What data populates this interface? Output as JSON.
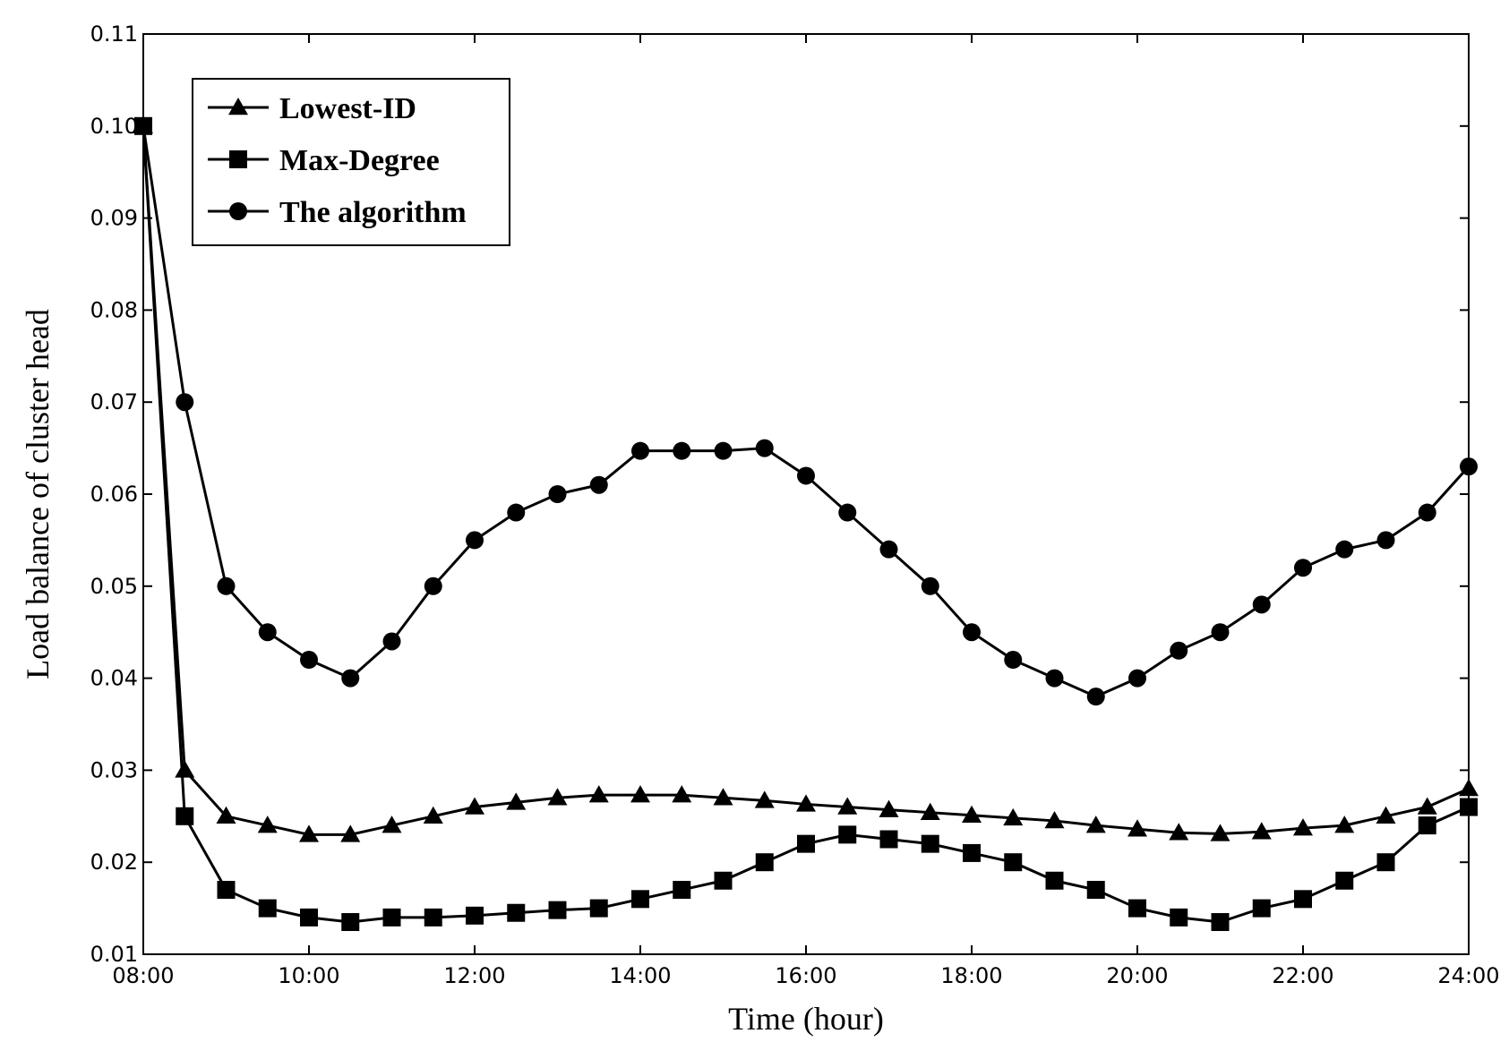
{
  "chart_data": {
    "type": "line",
    "title": "",
    "xlabel": "Time (hour)",
    "ylabel": "Load balance of cluster head",
    "xlim": [
      8,
      24
    ],
    "ylim": [
      0.01,
      0.11
    ],
    "x_ticks": [
      8,
      10,
      12,
      14,
      16,
      18,
      20,
      22,
      24
    ],
    "x_tick_labels": [
      "08:00",
      "10:00",
      "12:00",
      "14:00",
      "16:00",
      "18:00",
      "20:00",
      "22:00",
      "24:00"
    ],
    "y_ticks": [
      0.01,
      0.02,
      0.03,
      0.04,
      0.05,
      0.06,
      0.07,
      0.08,
      0.09,
      0.1,
      0.11
    ],
    "y_tick_labels": [
      "0.01",
      "0.02",
      "0.03",
      "0.04",
      "0.05",
      "0.06",
      "0.07",
      "0.08",
      "0.09",
      "0.10",
      "0.11"
    ],
    "grid": false,
    "legend_position": "top-left",
    "x": [
      8,
      8.5,
      9,
      9.5,
      10,
      10.5,
      11,
      11.5,
      12,
      12.5,
      13,
      13.5,
      14,
      14.5,
      15,
      15.5,
      16,
      16.5,
      17,
      17.5,
      18,
      18.5,
      19,
      19.5,
      20,
      20.5,
      21,
      21.5,
      22,
      22.5,
      23,
      23.5,
      24
    ],
    "series": [
      {
        "name": "Lowest-ID",
        "marker": "triangle",
        "values": [
          0.1,
          0.03,
          0.025,
          0.024,
          0.023,
          0.023,
          0.024,
          0.025,
          0.026,
          0.0265,
          0.027,
          0.0273,
          0.0273,
          0.0273,
          0.027,
          0.0267,
          0.0263,
          0.026,
          0.0257,
          0.0254,
          0.0251,
          0.0248,
          0.0245,
          0.024,
          0.0236,
          0.0232,
          0.0231,
          0.0233,
          0.0237,
          0.024,
          0.025,
          0.026,
          0.028
        ]
      },
      {
        "name": "Max-Degree",
        "marker": "square",
        "values": [
          0.1,
          0.025,
          0.017,
          0.015,
          0.014,
          0.0135,
          0.014,
          0.014,
          0.0142,
          0.0145,
          0.0148,
          0.015,
          0.016,
          0.017,
          0.018,
          0.02,
          0.022,
          0.023,
          0.0225,
          0.022,
          0.021,
          0.02,
          0.018,
          0.017,
          0.015,
          0.014,
          0.0135,
          0.015,
          0.016,
          0.018,
          0.02,
          0.024,
          0.026
        ]
      },
      {
        "name": "The algorithm",
        "marker": "circle",
        "values": [
          0.1,
          0.07,
          0.05,
          0.045,
          0.042,
          0.04,
          0.044,
          0.05,
          0.055,
          0.058,
          0.06,
          0.061,
          0.0647,
          0.0647,
          0.0647,
          0.065,
          0.062,
          0.058,
          0.054,
          0.05,
          0.045,
          0.042,
          0.04,
          0.038,
          0.04,
          0.043,
          0.045,
          0.048,
          0.052,
          0.054,
          0.055,
          0.058,
          0.063
        ]
      }
    ]
  }
}
